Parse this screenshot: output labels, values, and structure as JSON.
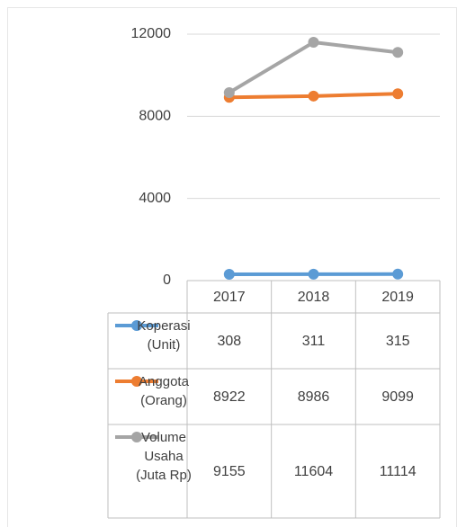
{
  "chart_data": {
    "type": "line",
    "categories": [
      "2017",
      "2018",
      "2019"
    ],
    "series": [
      {
        "name": "Koperasi (Unit)",
        "color": "#5b9bd5",
        "values": [
          308,
          311,
          315
        ]
      },
      {
        "name": "Anggota (Orang)",
        "color": "#ed7d31",
        "values": [
          8922,
          8986,
          9099
        ]
      },
      {
        "name": "Volume Usaha (Juta Rp)",
        "color": "#a5a5a5",
        "values": [
          9155,
          11604,
          11114
        ]
      }
    ],
    "ylim": [
      0,
      12000
    ],
    "yticks": [
      0,
      4000,
      8000,
      12000
    ],
    "grid": true,
    "data_table": true
  }
}
